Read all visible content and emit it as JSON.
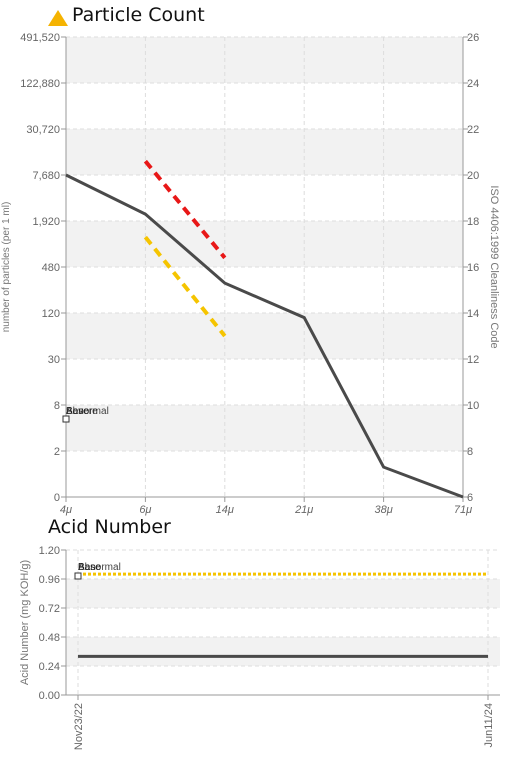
{
  "particle": {
    "title": "Particle Count",
    "icon": "warning-triangle-icon",
    "icon_color": "#f5b301",
    "chart_data": {
      "type": "line",
      "x_categories": [
        "4μ",
        "6μ",
        "14μ",
        "21μ",
        "38μ",
        "71μ"
      ],
      "ylabel_left": "number of particles (per 1 ml)",
      "ylabel_right": "ISO 4406:1999 Cleanliness Code",
      "yscale": "log",
      "yticks_left": [
        "0",
        "2",
        "8",
        "30",
        "120",
        "480",
        "1,920",
        "7,680",
        "30,720",
        "122,880",
        "491,520"
      ],
      "yticks_right": [
        "6",
        "8",
        "10",
        "12",
        "14",
        "16",
        "18",
        "20",
        "22",
        "24",
        "26"
      ],
      "ylim_code": [
        6,
        26
      ],
      "series": [
        {
          "values_code": [
            20.0,
            18.3,
            15.3,
            13.8,
            7.3,
            6.0
          ],
          "color": "#4a4a4a"
        }
      ],
      "limits": [
        {
          "color": "#e81717",
          "from_x": 1,
          "to_x": 2,
          "code": [
            20.6,
            16.4
          ]
        },
        {
          "color": "#f5c400",
          "from_x": 1,
          "to_x": 2,
          "code": [
            17.3,
            13.0
          ]
        }
      ],
      "legend_labels": [
        "Base",
        "Abnormal",
        "Severe"
      ]
    }
  },
  "acid": {
    "title": "Acid Number",
    "chart_data": {
      "type": "line",
      "x_categories": [
        "Nov23/22",
        "Jun11/24"
      ],
      "ylabel": "Acid Number (mg KOH/g)",
      "ylim": [
        0,
        1.2
      ],
      "yticks": [
        "0.00",
        "0.24",
        "0.48",
        "0.72",
        "0.96",
        "1.20"
      ],
      "series": [
        {
          "values": [
            0.32,
            0.32
          ],
          "color": "#4a4a4a"
        }
      ],
      "limits": [
        {
          "value": 1.0,
          "color": "#f5c400"
        }
      ],
      "legend_labels": [
        "Base",
        "Abnormal",
        "Base"
      ]
    }
  }
}
